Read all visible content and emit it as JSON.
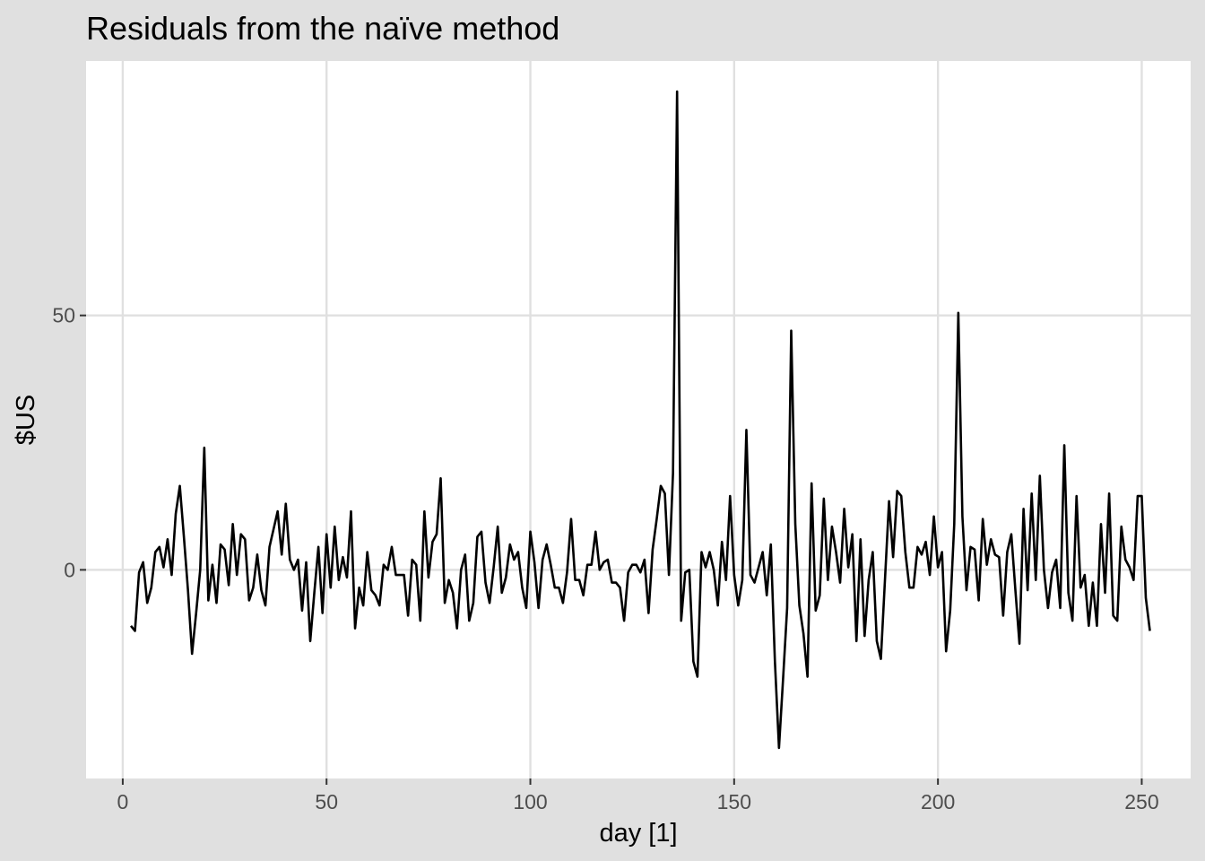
{
  "chart_data": {
    "type": "line",
    "title": "Residuals from the naïve method",
    "xlabel": "day [1]",
    "ylabel": "$US",
    "xlim": [
      -9,
      262
    ],
    "ylim": [
      -41,
      100
    ],
    "x_ticks": [
      0,
      50,
      100,
      150,
      200,
      250
    ],
    "y_ticks": [
      0,
      50
    ],
    "grid": true,
    "colors": {
      "background": "#e0e0e0",
      "panel": "#ffffff",
      "grid": "#e0e0e0",
      "line": "#000000"
    },
    "series": [
      {
        "x_start": 2,
        "x_step": 1,
        "values": [
          -11,
          -12,
          -0.5,
          1.5,
          -6.5,
          -3.5,
          3.5,
          4.5,
          0.5,
          6,
          -1,
          11,
          16.5,
          6.5,
          -4,
          -16.5,
          -8.5,
          0,
          24,
          -6,
          1,
          -6.5,
          5,
          4,
          -3,
          9,
          -1,
          7,
          6,
          -6,
          -3.5,
          3,
          -4,
          -7,
          4.5,
          8,
          11.5,
          3,
          13,
          2,
          0,
          2,
          -8,
          1.5,
          -14,
          -4.5,
          4.5,
          -8.5,
          7,
          -3.5,
          8.5,
          -2,
          2.5,
          -1.5,
          11.5,
          -11.5,
          -3.5,
          -7,
          3.5,
          -4,
          -5,
          -7,
          1,
          0,
          4.5,
          -1,
          -1,
          -1,
          -9,
          2,
          1,
          -10,
          11.5,
          -1.5,
          5.5,
          7,
          18,
          -6.5,
          -2,
          -4.5,
          -11.5,
          0,
          3,
          -10,
          -6.5,
          6.5,
          7.5,
          -2.5,
          -6.5,
          0.5,
          8.5,
          -4.5,
          -1.5,
          5,
          2,
          3.5,
          -3.5,
          -7.5,
          7.5,
          1.5,
          -7.5,
          2,
          5,
          1,
          -3.5,
          -3.5,
          -6.5,
          -0.5,
          10,
          -2,
          -2,
          -5,
          1,
          1,
          7.5,
          0,
          1.5,
          2,
          -2.5,
          -2.5,
          -3.5,
          -10,
          -0.5,
          1,
          1,
          -0.5,
          2,
          -8.5,
          4,
          10,
          16.5,
          15,
          -1,
          19,
          94,
          -10,
          -0.5,
          0,
          -18,
          -21,
          3.5,
          0.5,
          3.5,
          0,
          -7,
          5.5,
          -2,
          14.5,
          -1,
          -7,
          -2,
          27.5,
          -1,
          -2.5,
          0.5,
          3.5,
          -5,
          5,
          -18,
          -35,
          -21.5,
          -7.5,
          47,
          9,
          -7,
          -12.5,
          -21,
          17,
          -8,
          -5,
          14,
          -2,
          8.5,
          3.5,
          -2.5,
          12,
          0.5,
          7,
          -14,
          6,
          -13,
          -2,
          3.5,
          -14,
          -17.5,
          -2,
          13.5,
          2.5,
          15.5,
          14.5,
          3.5,
          -3.5,
          -3.5,
          4.5,
          3,
          5.5,
          -1,
          10.5,
          0.5,
          3.5,
          -16,
          -8,
          9,
          50.5,
          10.5,
          -4,
          4.5,
          4,
          -6,
          10,
          1,
          6,
          3,
          2.5,
          -9,
          3.5,
          7,
          -4,
          -14.5,
          12,
          -4,
          15,
          -2,
          18.5,
          0,
          -7.5,
          -0.5,
          2,
          -7.5,
          24.5,
          -4.5,
          -10,
          14.5,
          -3.5,
          -1,
          -11,
          -2.5,
          -11,
          9,
          -4.5,
          15,
          -9,
          -10,
          8.5,
          2,
          0.5,
          -2,
          14.5,
          14.5,
          -5.5,
          -12
        ]
      }
    ]
  }
}
